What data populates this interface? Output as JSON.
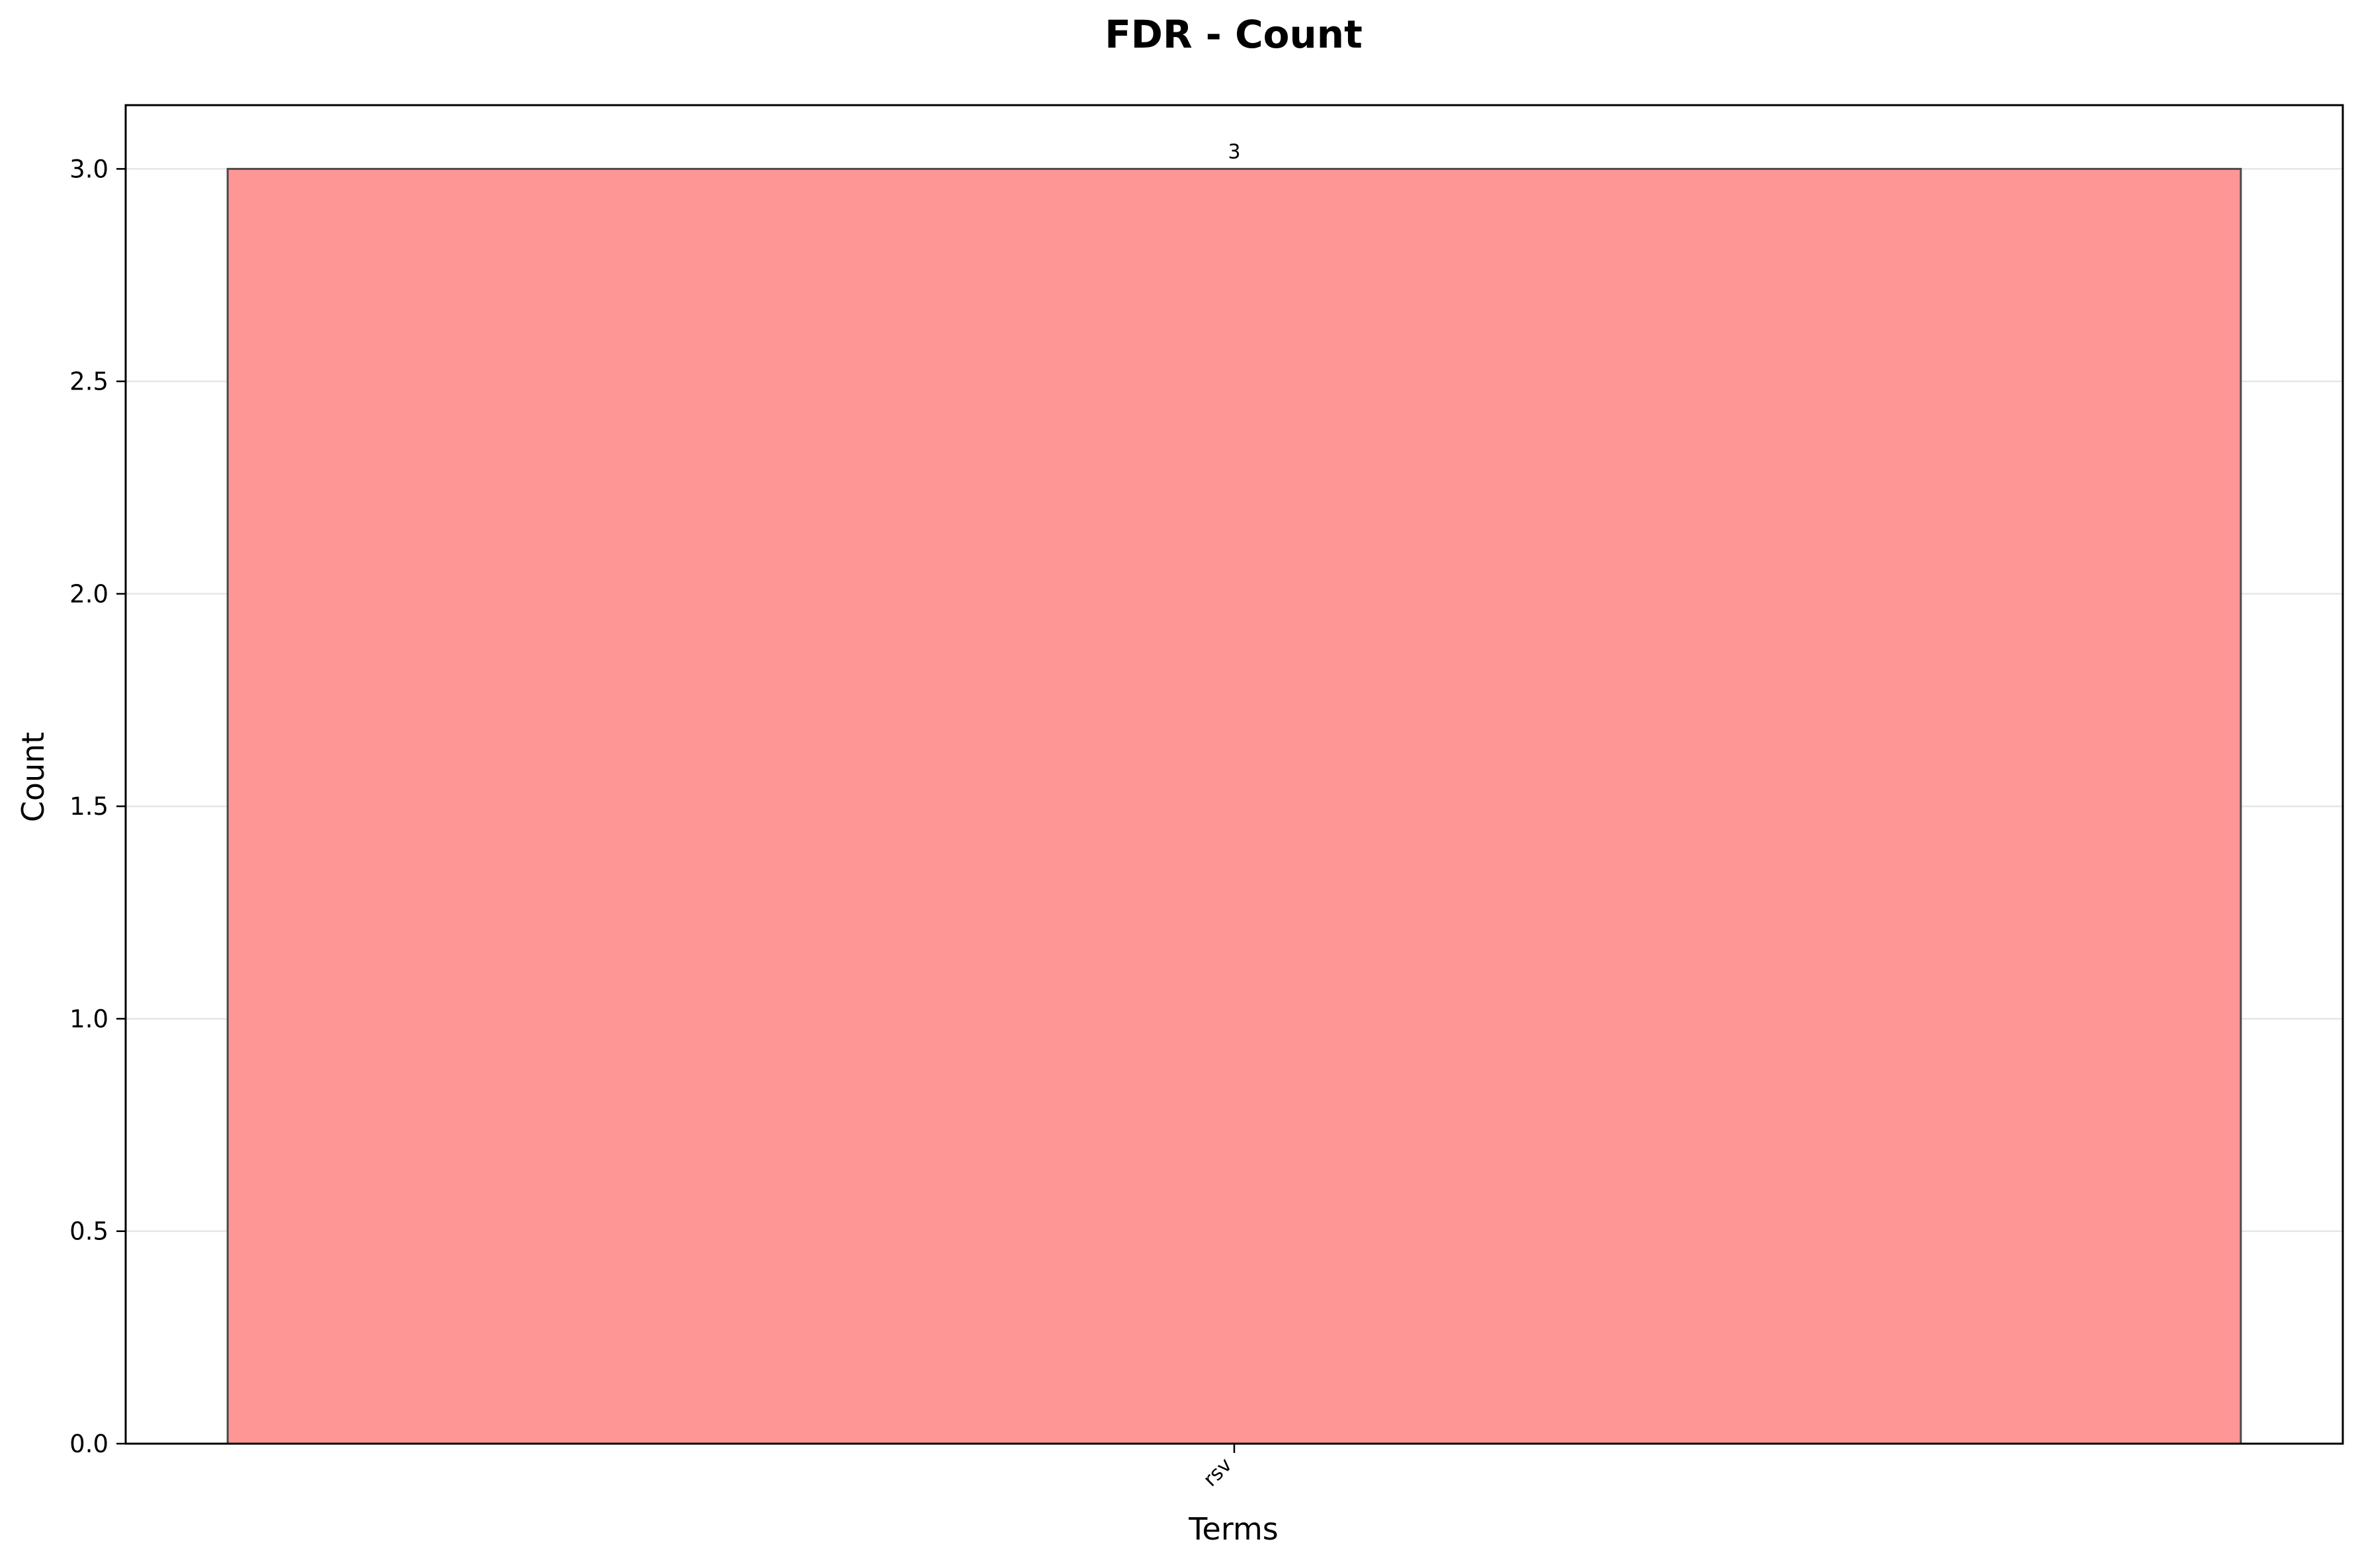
{
  "chart_data": {
    "type": "bar",
    "title": "FDR - Count",
    "xlabel": "Terms",
    "ylabel": "Count",
    "categories": [
      "rsv"
    ],
    "values": [
      3
    ],
    "data_labels": [
      "3"
    ],
    "ylim": [
      0,
      3.15
    ],
    "yticks": [
      0.0,
      0.5,
      1.0,
      1.5,
      2.0,
      2.5,
      3.0
    ],
    "ytick_labels": [
      "0.0",
      "0.5",
      "1.0",
      "1.5",
      "2.0",
      "2.5",
      "3.0"
    ],
    "grid": "y-axis, light",
    "legend": "none",
    "bar_color": "#ff9696",
    "bar_edge_color": "#4a4a4a",
    "grid_color": "#e6e6e6"
  }
}
